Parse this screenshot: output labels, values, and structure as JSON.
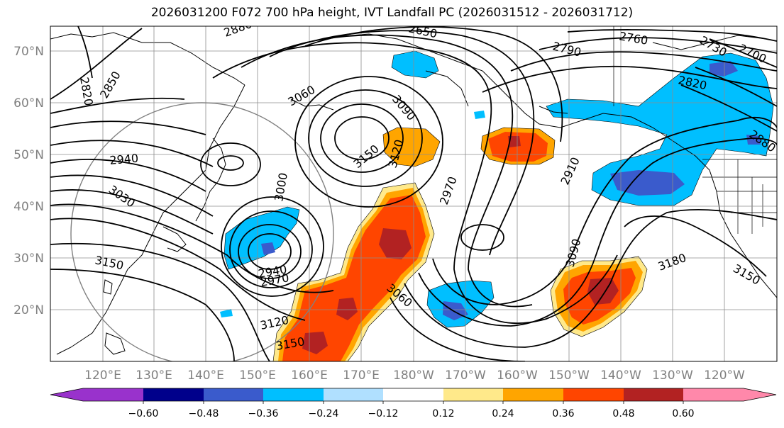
{
  "title": "2026031200 F072 700 hPa height, IVT Landfall PC (2026031512 - 2026031712)",
  "map": {
    "lat_labels": [
      "70°N",
      "60°N",
      "50°N",
      "40°N",
      "30°N",
      "20°N"
    ],
    "lon_labels": [
      "120°E",
      "130°E",
      "140°E",
      "150°E",
      "160°E",
      "170°E",
      "180°W",
      "170°W",
      "160°W",
      "150°W",
      "140°W",
      "130°W",
      "120°W"
    ],
    "contour_labels": [
      "2880",
      "2820",
      "2850",
      "2650",
      "2760",
      "2790",
      "2700",
      "2730",
      "2820",
      "2880",
      "3060",
      "3090",
      "3150",
      "3120",
      "2940",
      "3030",
      "3000",
      "2970",
      "2910",
      "2940",
      "2970",
      "3150",
      "3120",
      "3150",
      "3060",
      "3090",
      "3180",
      "3150"
    ]
  },
  "colorbar": {
    "ticks": [
      "−0.60",
      "−0.48",
      "−0.36",
      "−0.24",
      "−0.12",
      "0.12",
      "0.24",
      "0.36",
      "0.48",
      "0.60"
    ],
    "colors": [
      "#9932cc",
      "#00008b",
      "#3a5bcc",
      "#00bfff",
      "#b0e0ff",
      "#ffffff",
      "#ffe98a",
      "#ffa500",
      "#ff4500",
      "#b22222",
      "#ff88aa"
    ]
  }
}
